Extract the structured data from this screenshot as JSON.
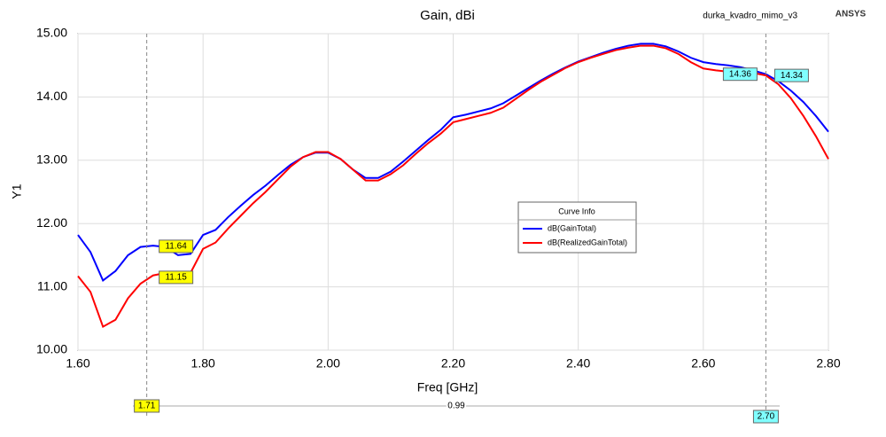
{
  "chart_data": {
    "type": "line",
    "title": "Gain, dBi",
    "design": "durka_kvadro_mimo_v3",
    "brand": "ANSYS",
    "x_label": "Freq [GHz]",
    "y_label": "Y1",
    "legend_title": "Curve Info",
    "grid": true,
    "x": [
      1.6,
      1.62,
      1.64,
      1.66,
      1.68,
      1.7,
      1.72,
      1.74,
      1.76,
      1.78,
      1.8,
      1.82,
      1.84,
      1.86,
      1.88,
      1.9,
      1.92,
      1.94,
      1.96,
      1.98,
      2.0,
      2.02,
      2.04,
      2.06,
      2.08,
      2.1,
      2.12,
      2.14,
      2.16,
      2.18,
      2.2,
      2.22,
      2.24,
      2.26,
      2.28,
      2.3,
      2.32,
      2.34,
      2.36,
      2.38,
      2.4,
      2.42,
      2.44,
      2.46,
      2.48,
      2.5,
      2.52,
      2.54,
      2.56,
      2.58,
      2.6,
      2.62,
      2.64,
      2.66,
      2.68,
      2.7,
      2.72,
      2.74,
      2.76,
      2.78,
      2.8
    ],
    "series": [
      {
        "name": "dB(GainTotal)",
        "color": "#0000ff",
        "values": [
          11.82,
          11.55,
          11.1,
          11.25,
          11.5,
          11.63,
          11.65,
          11.63,
          11.5,
          11.52,
          11.82,
          11.9,
          12.1,
          12.28,
          12.45,
          12.6,
          12.77,
          12.93,
          13.05,
          13.12,
          13.12,
          13.02,
          12.85,
          12.72,
          12.72,
          12.82,
          12.98,
          13.15,
          13.32,
          13.48,
          13.68,
          13.72,
          13.77,
          13.82,
          13.9,
          14.02,
          14.14,
          14.26,
          14.37,
          14.47,
          14.56,
          14.63,
          14.7,
          14.76,
          14.81,
          14.84,
          14.84,
          14.8,
          14.72,
          14.62,
          14.55,
          14.52,
          14.5,
          14.47,
          14.42,
          14.36,
          14.25,
          14.1,
          13.92,
          13.7,
          13.45
        ]
      },
      {
        "name": "dB(RealizedGainTotal)",
        "color": "#ff0000",
        "values": [
          11.17,
          10.92,
          10.37,
          10.48,
          10.82,
          11.05,
          11.18,
          11.22,
          11.22,
          11.22,
          11.6,
          11.7,
          11.92,
          12.12,
          12.32,
          12.5,
          12.7,
          12.9,
          13.05,
          13.13,
          13.13,
          13.02,
          12.85,
          12.68,
          12.68,
          12.78,
          12.92,
          13.1,
          13.27,
          13.42,
          13.6,
          13.65,
          13.7,
          13.75,
          13.83,
          13.97,
          14.11,
          14.24,
          14.35,
          14.46,
          14.55,
          14.62,
          14.68,
          14.74,
          14.78,
          14.81,
          14.81,
          14.77,
          14.68,
          14.55,
          14.45,
          14.42,
          14.4,
          14.4,
          14.38,
          14.34,
          14.2,
          13.98,
          13.7,
          13.38,
          13.02
        ]
      }
    ],
    "xlim": [
      1.6,
      2.8
    ],
    "xticks": [
      {
        "value": 1.6,
        "label": "1.60"
      },
      {
        "value": 1.8,
        "label": "1.80"
      },
      {
        "value": 2.0,
        "label": "2.00"
      },
      {
        "value": 2.2,
        "label": "2.20"
      },
      {
        "value": 2.4,
        "label": "2.40"
      },
      {
        "value": 2.6,
        "label": "2.60"
      },
      {
        "value": 2.8,
        "label": "2.80"
      }
    ],
    "ylim": [
      10,
      15
    ],
    "yticks": [
      {
        "value": 10,
        "label": "10.00"
      },
      {
        "value": 11,
        "label": "11.00"
      },
      {
        "value": 12,
        "label": "12.00"
      },
      {
        "value": 13,
        "label": "13.00"
      },
      {
        "value": 14,
        "label": "14.00"
      },
      {
        "value": 15,
        "label": "15.00"
      }
    ],
    "markers": [
      {
        "x": 1.71,
        "color": "#ffff00",
        "values": [
          11.64,
          11.15
        ]
      },
      {
        "x": {
          "value": 2.7,
          "label": "2.70"
        },
        "color": "#80ffff",
        "values": [
          14.36,
          14.34
        ]
      }
    ],
    "marker_delta": 0.99
  }
}
